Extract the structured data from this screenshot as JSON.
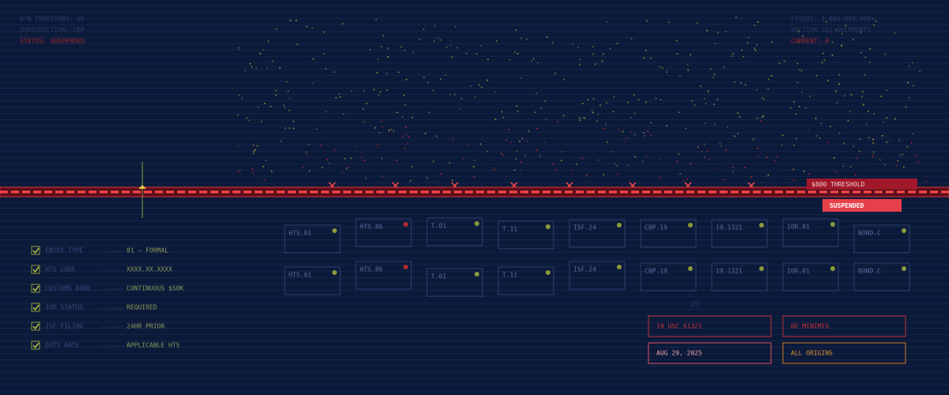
{
  "header_left": {
    "territory": "0°N TERRITORY: US",
    "jurisdiction": "JURISDICTION: CBP",
    "status": "STATUS: SUSPENDED"
  },
  "header_right": {
    "volume": "FY2025: 1,000,000,000+",
    "section": "SECTION 321 SHIPMENTS",
    "current": "CURRENT: 0"
  },
  "threshold": {
    "label": "$800 THRESHOLD",
    "badge": "SUSPENDED"
  },
  "requirements": [
    {
      "label": "ENTRY TYPE",
      "value": "01 — FORMAL"
    },
    {
      "label": "HTS CODE",
      "value": "XXXX.XX.XXXX"
    },
    {
      "label": "CUSTOMS BOND",
      "value": "CONTINUOUS $50K"
    },
    {
      "label": "IOR STATUS",
      "value": "REQUIRED"
    },
    {
      "label": "ISF FILING",
      "value": "24HR PRIOR"
    },
    {
      "label": "DUTY RATE",
      "value": "APPLICABLE HTS"
    }
  ],
  "forms": {
    "rows": [
      [
        {
          "label": "HTS.01",
          "dot": "#8a9a3a"
        },
        {
          "label": "HTS.86",
          "dot": "#b02a2a"
        },
        {
          "label": "T.01",
          "dot": "#8a9a3a"
        },
        {
          "label": "T.11",
          "dot": "#8a9a3a"
        },
        {
          "label": "ISF.24",
          "dot": "#8a9a3a"
        },
        {
          "label": "CBP.19",
          "dot": "#8a9a3a"
        },
        {
          "label": "19.1321",
          "dot": "#8a9a3a"
        },
        {
          "label": "IOR.01",
          "dot": "#8a9a3a"
        },
        {
          "label": "BOND.C",
          "dot": "#8a9a3a"
        }
      ],
      [
        {
          "label": "HTS.01",
          "dot": "#8a9a3a"
        },
        {
          "label": "HTS.86",
          "dot": "#b02a2a"
        },
        {
          "label": "T.01",
          "dot": "#8a9a3a"
        },
        {
          "label": "T.11",
          "dot": "#8a9a3a"
        },
        {
          "label": "ISF.24",
          "dot": "#8a9a3a"
        },
        {
          "label": "CBP.19",
          "dot": "#8a9a3a"
        },
        {
          "label": "19.1321",
          "dot": "#8a9a3a"
        },
        {
          "label": "IOR.01",
          "dot": "#8a9a3a"
        },
        {
          "label": "BOND.C",
          "dot": "#8a9a3a"
        }
      ]
    ]
  },
  "watermark": "§321",
  "tags": [
    "19 USC §1321",
    "DE MINIMIS",
    "AUG 29, 2025",
    "ALL ORIGINS"
  ]
}
